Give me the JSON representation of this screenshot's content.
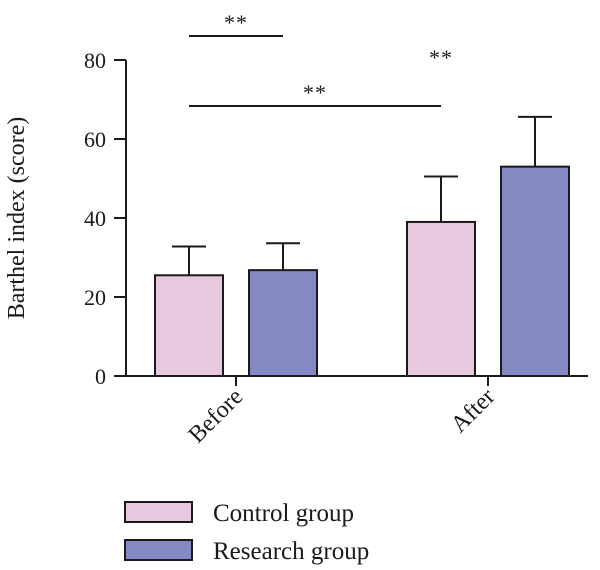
{
  "chart_data": {
    "type": "bar",
    "ylabel": "Barthel index (score)",
    "ylim": [
      0,
      80
    ],
    "yticks": [
      0,
      20,
      40,
      60,
      80
    ],
    "categories": [
      "Before",
      "After"
    ],
    "series": [
      {
        "name": "Control group",
        "values": [
          25.5,
          39
        ],
        "errors": [
          7.3,
          11.5
        ],
        "color": "#e8c8df"
      },
      {
        "name": "Research group",
        "values": [
          26.8,
          53
        ],
        "errors": [
          6.8,
          12.6
        ],
        "color": "#8488c3"
      }
    ],
    "significance": [
      {
        "label": "**",
        "from": [
          1,
          1
        ],
        "to": [
          1,
          2
        ]
      },
      {
        "label": "**",
        "from": [
          2,
          0
        ],
        "to": [
          2,
          1
        ]
      },
      {
        "label": "**",
        "from": [
          1,
          0
        ],
        "to": [
          2,
          0
        ]
      }
    ],
    "legend_position": "bottom-left",
    "grid": false
  }
}
